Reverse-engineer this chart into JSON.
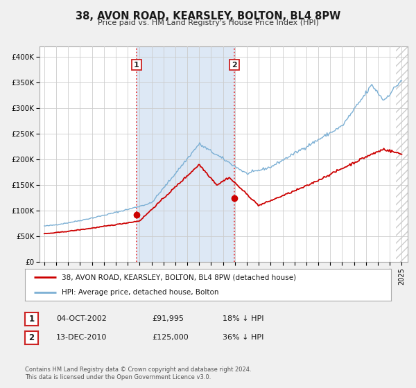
{
  "title": "38, AVON ROAD, KEARSLEY, BOLTON, BL4 8PW",
  "subtitle": "Price paid vs. HM Land Registry's House Price Index (HPI)",
  "ylim": [
    0,
    420000
  ],
  "yticks": [
    0,
    50000,
    100000,
    150000,
    200000,
    250000,
    300000,
    350000,
    400000
  ],
  "ytick_labels": [
    "£0",
    "£50K",
    "£100K",
    "£150K",
    "£200K",
    "£250K",
    "£300K",
    "£350K",
    "£400K"
  ],
  "xlim_start": 1994.6,
  "xlim_end": 2025.5,
  "bg_color": "#f0f0f0",
  "plot_bg_color": "#ffffff",
  "grid_color": "#cccccc",
  "sale1_date": 2002.75,
  "sale1_price": 91995,
  "sale1_label": "1",
  "sale2_date": 2010.95,
  "sale2_price": 125000,
  "sale2_label": "2",
  "sale_color": "#cc0000",
  "hpi_color": "#7bafd4",
  "vline_color": "#e84040",
  "shade_color": "#dde8f5",
  "hatch_color": "#cccccc",
  "legend_label1": "38, AVON ROAD, KEARSLEY, BOLTON, BL4 8PW (detached house)",
  "legend_label2": "HPI: Average price, detached house, Bolton",
  "table_row1": [
    "1",
    "04-OCT-2002",
    "£91,995",
    "18% ↓ HPI"
  ],
  "table_row2": [
    "2",
    "13-DEC-2010",
    "£125,000",
    "36% ↓ HPI"
  ],
  "footer1": "Contains HM Land Registry data © Crown copyright and database right 2024.",
  "footer2": "This data is licensed under the Open Government Licence v3.0.",
  "data_end_year": 2024.5
}
